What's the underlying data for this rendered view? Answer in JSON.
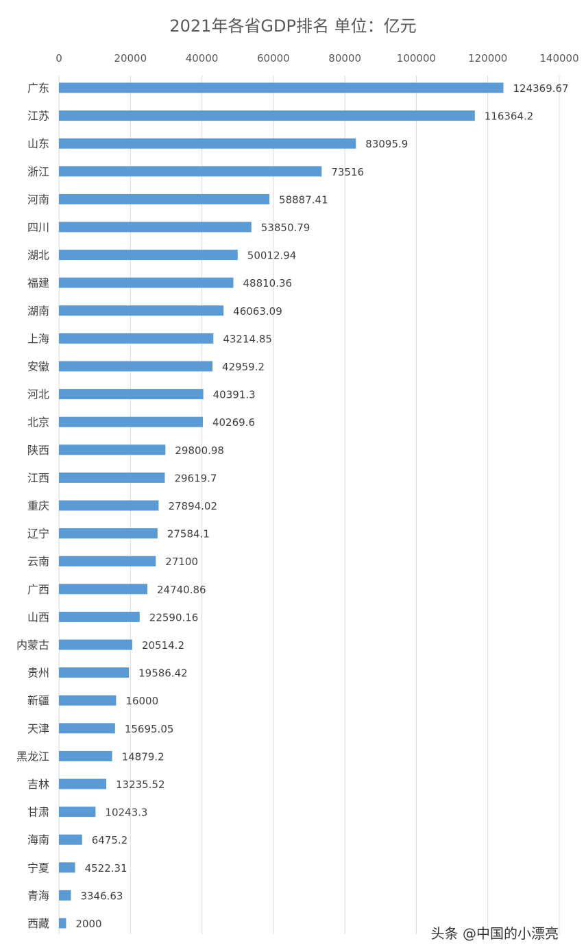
{
  "chart_data": {
    "type": "bar",
    "orientation": "horizontal",
    "title": "2021年各省GDP排名  单位：亿元",
    "xlim": [
      0,
      140000
    ],
    "ticks": [
      0,
      20000,
      40000,
      60000,
      80000,
      100000,
      120000,
      140000
    ],
    "tick_labels": [
      "0",
      "20000",
      "40000",
      "60000",
      "80000",
      "100000",
      "120000",
      "140000"
    ],
    "x_axis_position": "top",
    "grid": true,
    "bar_color": "#5B9BD5",
    "categories": [
      "广东",
      "江苏",
      "山东",
      "浙江",
      "河南",
      "四川",
      "湖北",
      "福建",
      "湖南",
      "上海",
      "安徽",
      "河北",
      "北京",
      "陕西",
      "江西",
      "重庆",
      "辽宁",
      "云南",
      "广西",
      "山西",
      "内蒙古",
      "贵州",
      "新疆",
      "天津",
      "黑龙江",
      "吉林",
      "甘肃",
      "海南",
      "宁夏",
      "青海",
      "西藏"
    ],
    "values": [
      124369.67,
      116364.2,
      83095.9,
      73516,
      58887.41,
      53850.79,
      50012.94,
      48810.36,
      46063.09,
      43214.85,
      42959.2,
      40391.3,
      40269.6,
      29800.98,
      29619.7,
      27894.02,
      27584.1,
      27100,
      24740.86,
      22590.16,
      20514.2,
      19586.42,
      16000,
      15695.05,
      14879.2,
      13235.52,
      10243.3,
      6475.2,
      4522.31,
      3346.63,
      2000
    ],
    "value_labels": [
      "124369.67",
      "116364.2",
      "83095.9",
      "73516",
      "58887.41",
      "53850.79",
      "50012.94",
      "48810.36",
      "46063.09",
      "43214.85",
      "42959.2",
      "40391.3",
      "40269.6",
      "29800.98",
      "29619.7",
      "27894.02",
      "27584.1",
      "27100",
      "24740.86",
      "22590.16",
      "20514.2",
      "19586.42",
      "16000",
      "15695.05",
      "14879.2",
      "13235.52",
      "10243.3",
      "6475.2",
      "4522.31",
      "3346.63",
      "2000"
    ]
  },
  "watermark": "头条 @中国的小漂亮"
}
